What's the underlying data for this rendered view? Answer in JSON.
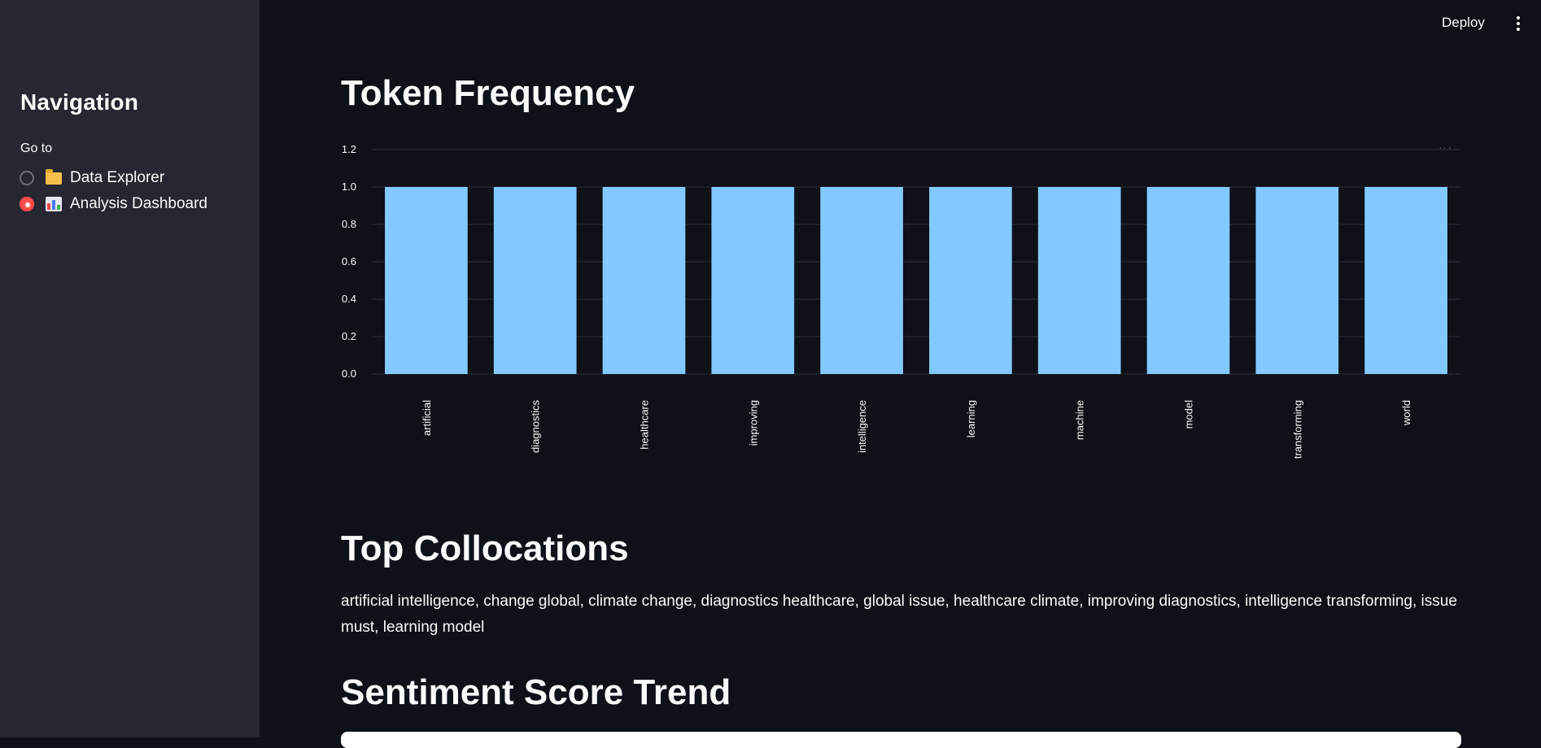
{
  "sidebar": {
    "title": "Navigation",
    "goto_label": "Go to",
    "items": [
      {
        "label": "Data Explorer",
        "icon": "folder-icon",
        "selected": false
      },
      {
        "label": "Analysis Dashboard",
        "icon": "bar-chart-icon",
        "selected": true
      }
    ]
  },
  "header": {
    "deploy_label": "Deploy",
    "menu_icon": "kebab-menu-icon"
  },
  "sections": {
    "token_frequency": "Token Frequency",
    "top_collocations": "Top Collocations",
    "sentiment_trend": "Sentiment Score Trend"
  },
  "collocations_text": "artificial intelligence, change global, climate change, diagnostics healthcare, global issue, healthcare climate, improving diagnostics, intelligence transforming, issue must, learning model",
  "colors": {
    "bar": "#83c9ff",
    "accent": "#ff4b4b",
    "background": "#0e1117",
    "sidebar": "#262730"
  },
  "chart_data": {
    "type": "bar",
    "categories": [
      "artificial",
      "diagnostics",
      "healthcare",
      "improving",
      "intelligence",
      "learning",
      "machine",
      "model",
      "transforming",
      "world"
    ],
    "values": [
      1,
      1,
      1,
      1,
      1,
      1,
      1,
      1,
      1,
      1
    ],
    "ylim": [
      0,
      1.2
    ],
    "yticks": [
      "0.0",
      "0.2",
      "0.4",
      "0.6",
      "0.8",
      "1.0",
      "1.2"
    ],
    "grid": true,
    "title": "",
    "xlabel": "",
    "ylabel": ""
  }
}
